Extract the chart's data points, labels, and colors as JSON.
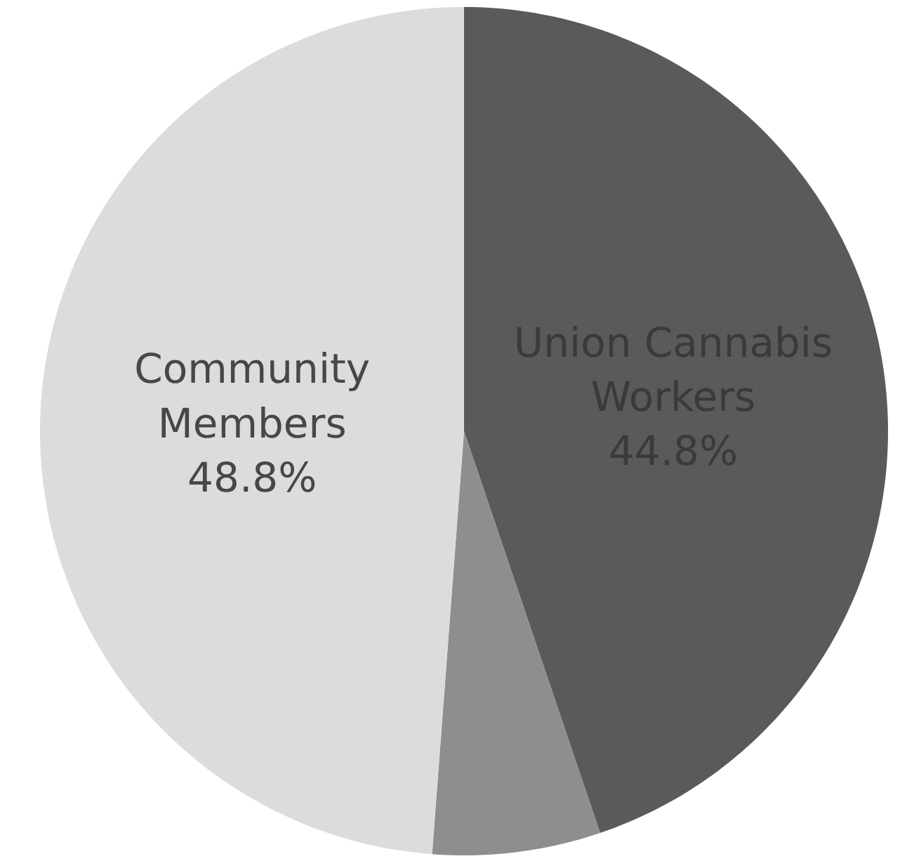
{
  "chart_data": {
    "type": "pie",
    "categories": [
      "Union Cannabis Workers",
      null,
      "Community Members"
    ],
    "values": [
      44.8,
      6.4,
      48.8
    ],
    "colors": [
      "#5a5a5a",
      "#8e8e8e",
      "#dcdcdc"
    ],
    "value_labels": [
      "44.8%",
      null,
      "48.8%"
    ],
    "legend": false
  }
}
